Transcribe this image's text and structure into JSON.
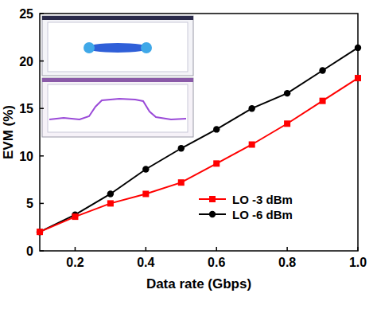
{
  "chart_data": {
    "type": "line",
    "x_label": "Data rate (Gbps)",
    "y_label": "EVM (%)",
    "x": [
      0.1,
      0.2,
      0.3,
      0.4,
      0.5,
      0.6,
      0.7,
      0.8,
      0.9,
      1.0
    ],
    "series": [
      {
        "name": "LO -3 dBm",
        "color": "#ff0000",
        "marker": "square",
        "values": [
          2.0,
          3.6,
          5.0,
          6.0,
          7.2,
          9.2,
          11.2,
          13.4,
          15.8,
          18.2
        ]
      },
      {
        "name": "LO -6 dBm",
        "color": "#000000",
        "marker": "circle",
        "values": [
          2.0,
          3.8,
          6.0,
          8.6,
          10.8,
          12.8,
          15.0,
          16.6,
          19.0,
          21.4
        ]
      }
    ],
    "xlim": [
      0.1,
      1.0
    ],
    "xticks": [
      0.2,
      0.4,
      0.6,
      0.8,
      {
        "value": 1.0,
        "label": "1.0"
      }
    ],
    "ylim": [
      0,
      25
    ],
    "yticks": [
      0,
      5,
      10,
      15,
      20,
      25
    ],
    "grid": false,
    "legend": "lower right"
  }
}
